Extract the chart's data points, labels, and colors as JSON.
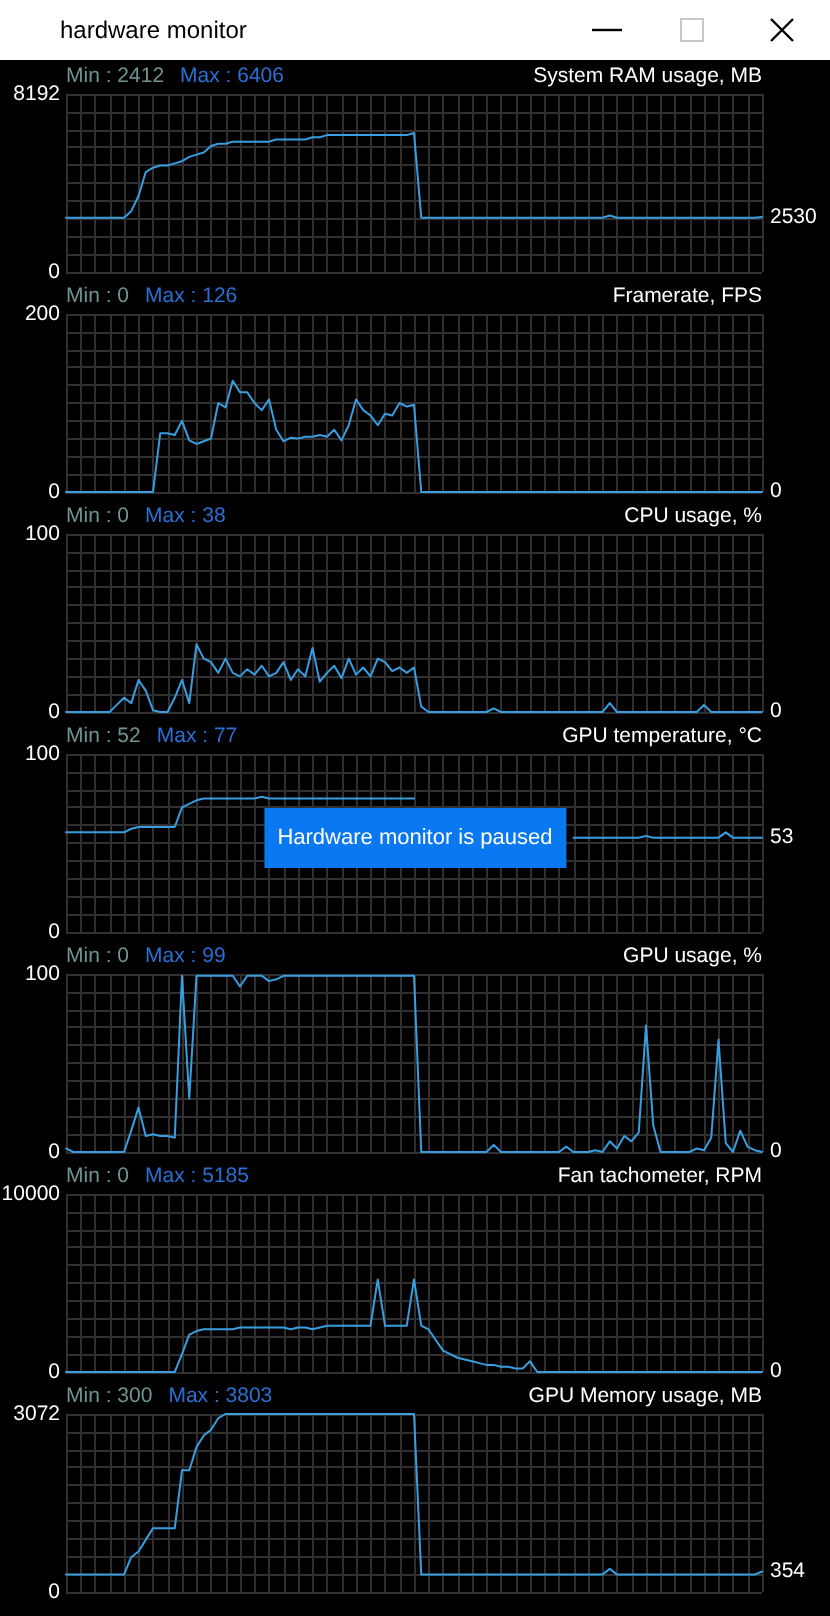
{
  "chart_data": [
    {
      "type": "other",
      "title": "hardware monitor"
    },
    {
      "type": "line",
      "title": "System RAM usage, MB",
      "annotations": [
        "Min : 2412",
        "Max : 6406"
      ],
      "categories": [
        null,
        null,
        null,
        null,
        null,
        null,
        null,
        null,
        null,
        null,
        null,
        null,
        null,
        null,
        null,
        null,
        null,
        null,
        null,
        null,
        null,
        null,
        null,
        null,
        null,
        null,
        null,
        null,
        null,
        null,
        null,
        null,
        null,
        null,
        null,
        null,
        null,
        null,
        null,
        null,
        null,
        null,
        null,
        null,
        null,
        null,
        null,
        null,
        null,
        null,
        null,
        null,
        null,
        null,
        null,
        null,
        null,
        null,
        null,
        null,
        null,
        null,
        null,
        null,
        null,
        null,
        null,
        null,
        null,
        null,
        null,
        null,
        null,
        null,
        null,
        null,
        null,
        null,
        null,
        null,
        null,
        null,
        null,
        null,
        null,
        null,
        null,
        null,
        null,
        null,
        null,
        null,
        null,
        null,
        null,
        null,
        null
      ],
      "values": [
        2500,
        2500,
        2500,
        2500,
        2500,
        2500,
        2500,
        2500,
        2500,
        2800,
        3500,
        4600,
        4800,
        4900,
        4900,
        5000,
        5100,
        5300,
        5400,
        5500,
        5800,
        5900,
        5900,
        6000,
        6000,
        6000,
        6000,
        6000,
        6000,
        6100,
        6100,
        6100,
        6100,
        6100,
        6200,
        6200,
        6300,
        6300,
        6300,
        6300,
        6300,
        6300,
        6300,
        6300,
        6300,
        6300,
        6300,
        6300,
        6400,
        2500,
        2500,
        2500,
        2500,
        2500,
        2500,
        2500,
        2500,
        2500,
        2500,
        2500,
        2500,
        2500,
        2500,
        2500,
        2500,
        2500,
        2500,
        2500,
        2500,
        2500,
        2500,
        2500,
        2500,
        2500,
        2500,
        2600,
        2500,
        2500,
        2500,
        2500,
        2500,
        2500,
        2500,
        2500,
        2500,
        2500,
        2500,
        2500,
        2500,
        2500,
        2500,
        2500,
        2500,
        2500,
        2500,
        2500,
        2530
      ],
      "value_labels": [
        null,
        null,
        null,
        null,
        null,
        null,
        null,
        null,
        null,
        null,
        null,
        null,
        null,
        null,
        null,
        null,
        null,
        null,
        null,
        null,
        null,
        null,
        null,
        null,
        null,
        null,
        null,
        null,
        null,
        null,
        null,
        null,
        null,
        null,
        null,
        null,
        null,
        null,
        null,
        null,
        null,
        null,
        null,
        null,
        null,
        null,
        null,
        null,
        null,
        null,
        null,
        null,
        null,
        null,
        null,
        null,
        null,
        null,
        null,
        null,
        null,
        null,
        null,
        null,
        null,
        null,
        null,
        null,
        null,
        null,
        null,
        null,
        null,
        null,
        null,
        null,
        null,
        null,
        null,
        null,
        null,
        null,
        null,
        null,
        null,
        null,
        null,
        null,
        null,
        null,
        null,
        null,
        null,
        null,
        null,
        null,
        "2530"
      ],
      "color": "#389ee0",
      "ylim": [
        0,
        8192
      ],
      "yticks": [
        0,
        {
          "value": 819.2,
          "label": null
        },
        {
          "value": 1638.4,
          "label": null
        },
        {
          "value": 2457.6,
          "label": null
        },
        {
          "value": 3276.8,
          "label": null
        },
        {
          "value": 4096,
          "label": null
        },
        {
          "value": 4915.2,
          "label": null
        },
        {
          "value": 5734.4,
          "label": null
        },
        {
          "value": 6553.6,
          "label": null
        },
        {
          "value": 7372.8,
          "label": null
        },
        8192
      ],
      "grid": true,
      "tick_labels": "y"
    },
    {
      "type": "line",
      "title": "Framerate, FPS",
      "annotations": [
        "Min : 0",
        "Max : 126"
      ],
      "categories": [
        null,
        null,
        null,
        null,
        null,
        null,
        null,
        null,
        null,
        null,
        null,
        null,
        null,
        null,
        null,
        null,
        null,
        null,
        null,
        null,
        null,
        null,
        null,
        null,
        null,
        null,
        null,
        null,
        null,
        null,
        null,
        null,
        null,
        null,
        null,
        null,
        null,
        null,
        null,
        null,
        null,
        null,
        null,
        null,
        null,
        null,
        null,
        null,
        null,
        null,
        null,
        null,
        null,
        null,
        null,
        null,
        null,
        null,
        null,
        null,
        null,
        null,
        null,
        null,
        null,
        null,
        null,
        null,
        null,
        null,
        null,
        null,
        null,
        null,
        null,
        null,
        null,
        null,
        null,
        null,
        null,
        null,
        null,
        null,
        null,
        null,
        null,
        null,
        null,
        null,
        null,
        null,
        null,
        null,
        null,
        null,
        null
      ],
      "values": [
        0,
        0,
        0,
        0,
        0,
        0,
        0,
        0,
        0,
        0,
        0,
        0,
        0,
        66,
        66,
        64,
        80,
        58,
        54,
        57,
        60,
        100,
        95,
        125,
        112,
        112,
        100,
        92,
        104,
        70,
        57,
        61,
        60,
        62,
        62,
        64,
        62,
        70,
        58,
        75,
        104,
        92,
        86,
        75,
        88,
        86,
        100,
        96,
        98,
        0,
        0,
        0,
        0,
        0,
        0,
        0,
        0,
        0,
        0,
        0,
        0,
        0,
        0,
        0,
        0,
        0,
        0,
        0,
        0,
        0,
        0,
        0,
        0,
        0,
        0,
        0,
        0,
        0,
        0,
        0,
        0,
        0,
        0,
        0,
        0,
        0,
        0,
        0,
        0,
        0,
        0,
        0,
        0,
        0,
        0,
        0,
        0
      ],
      "value_labels": [
        null,
        null,
        null,
        null,
        null,
        null,
        null,
        null,
        null,
        null,
        null,
        null,
        null,
        null,
        null,
        null,
        null,
        null,
        null,
        null,
        null,
        null,
        null,
        null,
        null,
        null,
        null,
        null,
        null,
        null,
        null,
        null,
        null,
        null,
        null,
        null,
        null,
        null,
        null,
        null,
        null,
        null,
        null,
        null,
        null,
        null,
        null,
        null,
        null,
        null,
        null,
        null,
        null,
        null,
        null,
        null,
        null,
        null,
        null,
        null,
        null,
        null,
        null,
        null,
        null,
        null,
        null,
        null,
        null,
        null,
        null,
        null,
        null,
        null,
        null,
        null,
        null,
        null,
        null,
        null,
        null,
        null,
        null,
        null,
        null,
        null,
        null,
        null,
        null,
        null,
        null,
        null,
        null,
        null,
        null,
        null,
        "0"
      ],
      "color": "#389ee0",
      "ylim": [
        0,
        200
      ],
      "yticks": [
        0,
        {
          "value": 20,
          "label": null
        },
        {
          "value": 40,
          "label": null
        },
        {
          "value": 60,
          "label": null
        },
        {
          "value": 80,
          "label": null
        },
        {
          "value": 100,
          "label": null
        },
        {
          "value": 120,
          "label": null
        },
        {
          "value": 140,
          "label": null
        },
        {
          "value": 160,
          "label": null
        },
        {
          "value": 180,
          "label": null
        },
        200
      ],
      "grid": true,
      "tick_labels": "y"
    },
    {
      "type": "line",
      "title": "CPU usage, %",
      "annotations": [
        "Min : 0",
        "Max : 38"
      ],
      "categories": [
        null,
        null,
        null,
        null,
        null,
        null,
        null,
        null,
        null,
        null,
        null,
        null,
        null,
        null,
        null,
        null,
        null,
        null,
        null,
        null,
        null,
        null,
        null,
        null,
        null,
        null,
        null,
        null,
        null,
        null,
        null,
        null,
        null,
        null,
        null,
        null,
        null,
        null,
        null,
        null,
        null,
        null,
        null,
        null,
        null,
        null,
        null,
        null,
        null,
        null,
        null,
        null,
        null,
        null,
        null,
        null,
        null,
        null,
        null,
        null,
        null,
        null,
        null,
        null,
        null,
        null,
        null,
        null,
        null,
        null,
        null,
        null,
        null,
        null,
        null,
        null,
        null,
        null,
        null,
        null,
        null,
        null,
        null,
        null,
        null,
        null,
        null,
        null,
        null,
        null,
        null,
        null,
        null,
        null,
        null,
        null,
        null
      ],
      "values": [
        0,
        0,
        0,
        0,
        0,
        0,
        0,
        4,
        8,
        5,
        18,
        12,
        1,
        0,
        0,
        8,
        18,
        5,
        38,
        30,
        28,
        22,
        30,
        22,
        20,
        24,
        21,
        26,
        20,
        22,
        28,
        18,
        24,
        20,
        36,
        17,
        22,
        26,
        19,
        30,
        21,
        25,
        20,
        30,
        28,
        23,
        25,
        22,
        25,
        3,
        0,
        0,
        0,
        0,
        0,
        0,
        0,
        0,
        0,
        2,
        0,
        0,
        0,
        0,
        0,
        0,
        0,
        0,
        0,
        0,
        0,
        0,
        0,
        0,
        0,
        5,
        0,
        0,
        0,
        0,
        0,
        0,
        0,
        0,
        0,
        0,
        0,
        0,
        4,
        0,
        0,
        0,
        0,
        0,
        0,
        0,
        0
      ],
      "value_labels": [
        null,
        null,
        null,
        null,
        null,
        null,
        null,
        null,
        null,
        null,
        null,
        null,
        null,
        null,
        null,
        null,
        null,
        null,
        null,
        null,
        null,
        null,
        null,
        null,
        null,
        null,
        null,
        null,
        null,
        null,
        null,
        null,
        null,
        null,
        null,
        null,
        null,
        null,
        null,
        null,
        null,
        null,
        null,
        null,
        null,
        null,
        null,
        null,
        null,
        null,
        null,
        null,
        null,
        null,
        null,
        null,
        null,
        null,
        null,
        null,
        null,
        null,
        null,
        null,
        null,
        null,
        null,
        null,
        null,
        null,
        null,
        null,
        null,
        null,
        null,
        null,
        null,
        null,
        null,
        null,
        null,
        null,
        null,
        null,
        null,
        null,
        null,
        null,
        null,
        null,
        null,
        null,
        null,
        null,
        null,
        null,
        "0"
      ],
      "color": "#389ee0",
      "ylim": [
        0,
        100
      ],
      "yticks": [
        0,
        {
          "value": 10,
          "label": null
        },
        {
          "value": 20,
          "label": null
        },
        {
          "value": 30,
          "label": null
        },
        {
          "value": 40,
          "label": null
        },
        {
          "value": 50,
          "label": null
        },
        {
          "value": 60,
          "label": null
        },
        {
          "value": 70,
          "label": null
        },
        {
          "value": 80,
          "label": null
        },
        {
          "value": 90,
          "label": null
        },
        100
      ],
      "grid": true,
      "tick_labels": "y"
    },
    {
      "type": "line",
      "title": "GPU temperature, °C",
      "annotations": [
        "Min : 52",
        "Max : 77",
        "Hardware monitor is paused"
      ],
      "categories": [
        null,
        null,
        null,
        null,
        null,
        null,
        null,
        null,
        null,
        null,
        null,
        null,
        null,
        null,
        null,
        null,
        null,
        null,
        null,
        null,
        null,
        null,
        null,
        null,
        null,
        null,
        null,
        null,
        null,
        null,
        null,
        null,
        null,
        null,
        null,
        null,
        null,
        null,
        null,
        null,
        null,
        null,
        null,
        null,
        null,
        null,
        null,
        null,
        null,
        null,
        null,
        null,
        null,
        null,
        null,
        null,
        null,
        null,
        null,
        null,
        null,
        null,
        null,
        null,
        null,
        null,
        null,
        null,
        null,
        null,
        null,
        null,
        null,
        null,
        null,
        null,
        null,
        null,
        null,
        null,
        null,
        null,
        null,
        null,
        null,
        null,
        null,
        null,
        null,
        null,
        null,
        null,
        null,
        null,
        null,
        null,
        null
      ],
      "values": [
        56,
        56,
        56,
        56,
        56,
        56,
        56,
        56,
        56,
        58,
        59,
        59,
        59,
        59,
        59,
        59,
        70,
        72,
        74,
        75,
        75,
        75,
        75,
        75,
        75,
        75,
        75,
        76,
        75,
        75,
        75,
        75,
        75,
        75,
        75,
        75,
        75,
        75,
        75,
        75,
        75,
        75,
        75,
        75,
        75,
        75,
        75,
        75,
        75,
        null,
        null,
        null,
        null,
        null,
        null,
        null,
        null,
        null,
        null,
        null,
        null,
        null,
        null,
        null,
        null,
        null,
        null,
        null,
        null,
        null,
        53,
        53,
        53,
        53,
        53,
        53,
        53,
        53,
        53,
        53,
        54,
        53,
        53,
        53,
        53,
        53,
        53,
        53,
        53,
        53,
        53,
        56,
        53,
        53,
        53,
        53,
        53
      ],
      "value_labels": [
        null,
        null,
        null,
        null,
        null,
        null,
        null,
        null,
        null,
        null,
        null,
        null,
        null,
        null,
        null,
        null,
        null,
        null,
        null,
        null,
        null,
        null,
        null,
        null,
        null,
        null,
        null,
        null,
        null,
        null,
        null,
        null,
        null,
        null,
        null,
        null,
        null,
        null,
        null,
        null,
        null,
        null,
        null,
        null,
        null,
        null,
        null,
        null,
        null,
        null,
        null,
        null,
        null,
        null,
        null,
        null,
        null,
        null,
        null,
        null,
        null,
        null,
        null,
        null,
        null,
        null,
        null,
        null,
        null,
        null,
        null,
        null,
        null,
        null,
        null,
        null,
        null,
        null,
        null,
        null,
        null,
        null,
        null,
        null,
        null,
        null,
        null,
        null,
        null,
        null,
        null,
        null,
        null,
        null,
        null,
        null,
        "53"
      ],
      "color": "#389ee0",
      "ylim": [
        0,
        100
      ],
      "yticks": [
        0,
        {
          "value": 10,
          "label": null
        },
        {
          "value": 20,
          "label": null
        },
        {
          "value": 30,
          "label": null
        },
        {
          "value": 40,
          "label": null
        },
        {
          "value": 50,
          "label": null
        },
        {
          "value": 60,
          "label": null
        },
        {
          "value": 70,
          "label": null
        },
        {
          "value": 80,
          "label": null
        },
        {
          "value": 90,
          "label": null
        },
        100
      ],
      "grid": true,
      "tick_labels": "y"
    },
    {
      "type": "line",
      "title": "GPU usage, %",
      "annotations": [
        "Min : 0",
        "Max : 99"
      ],
      "categories": [
        null,
        null,
        null,
        null,
        null,
        null,
        null,
        null,
        null,
        null,
        null,
        null,
        null,
        null,
        null,
        null,
        null,
        null,
        null,
        null,
        null,
        null,
        null,
        null,
        null,
        null,
        null,
        null,
        null,
        null,
        null,
        null,
        null,
        null,
        null,
        null,
        null,
        null,
        null,
        null,
        null,
        null,
        null,
        null,
        null,
        null,
        null,
        null,
        null,
        null,
        null,
        null,
        null,
        null,
        null,
        null,
        null,
        null,
        null,
        null,
        null,
        null,
        null,
        null,
        null,
        null,
        null,
        null,
        null,
        null,
        null,
        null,
        null,
        null,
        null,
        null,
        null,
        null,
        null,
        null,
        null,
        null,
        null,
        null,
        null,
        null,
        null,
        null,
        null,
        null,
        null,
        null,
        null,
        null,
        null,
        null,
        null
      ],
      "values": [
        2,
        0,
        0,
        0,
        0,
        0,
        0,
        0,
        0,
        12,
        25,
        9,
        10,
        9,
        9,
        8,
        99,
        30,
        99,
        99,
        99,
        99,
        99,
        99,
        93,
        99,
        99,
        99,
        96,
        97,
        99,
        99,
        99,
        99,
        99,
        99,
        99,
        99,
        99,
        99,
        99,
        99,
        99,
        99,
        99,
        99,
        99,
        99,
        99,
        0,
        0,
        0,
        0,
        0,
        0,
        0,
        0,
        0,
        0,
        4,
        0,
        0,
        0,
        0,
        0,
        0,
        0,
        0,
        0,
        3,
        0,
        0,
        0,
        1,
        0,
        6,
        2,
        9,
        6,
        11,
        71,
        15,
        0,
        0,
        0,
        0,
        0,
        2,
        1,
        8,
        63,
        5,
        0,
        12,
        3,
        1,
        0
      ],
      "value_labels": [
        null,
        null,
        null,
        null,
        null,
        null,
        null,
        null,
        null,
        null,
        null,
        null,
        null,
        null,
        null,
        null,
        null,
        null,
        null,
        null,
        null,
        null,
        null,
        null,
        null,
        null,
        null,
        null,
        null,
        null,
        null,
        null,
        null,
        null,
        null,
        null,
        null,
        null,
        null,
        null,
        null,
        null,
        null,
        null,
        null,
        null,
        null,
        null,
        null,
        null,
        null,
        null,
        null,
        null,
        null,
        null,
        null,
        null,
        null,
        null,
        null,
        null,
        null,
        null,
        null,
        null,
        null,
        null,
        null,
        null,
        null,
        null,
        null,
        null,
        null,
        null,
        null,
        null,
        null,
        null,
        null,
        null,
        null,
        null,
        null,
        null,
        null,
        null,
        null,
        null,
        null,
        null,
        null,
        null,
        null,
        null,
        "0"
      ],
      "color": "#389ee0",
      "ylim": [
        0,
        100
      ],
      "yticks": [
        0,
        {
          "value": 10,
          "label": null
        },
        {
          "value": 20,
          "label": null
        },
        {
          "value": 30,
          "label": null
        },
        {
          "value": 40,
          "label": null
        },
        {
          "value": 50,
          "label": null
        },
        {
          "value": 60,
          "label": null
        },
        {
          "value": 70,
          "label": null
        },
        {
          "value": 80,
          "label": null
        },
        {
          "value": 90,
          "label": null
        },
        100
      ],
      "grid": true,
      "tick_labels": "y"
    },
    {
      "type": "line",
      "title": "Fan tachometer, RPM",
      "annotations": [
        "Min : 0",
        "Max : 5185"
      ],
      "categories": [
        null,
        null,
        null,
        null,
        null,
        null,
        null,
        null,
        null,
        null,
        null,
        null,
        null,
        null,
        null,
        null,
        null,
        null,
        null,
        null,
        null,
        null,
        null,
        null,
        null,
        null,
        null,
        null,
        null,
        null,
        null,
        null,
        null,
        null,
        null,
        null,
        null,
        null,
        null,
        null,
        null,
        null,
        null,
        null,
        null,
        null,
        null,
        null,
        null,
        null,
        null,
        null,
        null,
        null,
        null,
        null,
        null,
        null,
        null,
        null,
        null,
        null,
        null,
        null,
        null,
        null,
        null,
        null,
        null,
        null,
        null,
        null,
        null,
        null,
        null,
        null,
        null,
        null,
        null,
        null,
        null,
        null,
        null,
        null,
        null,
        null,
        null,
        null,
        null,
        null,
        null,
        null,
        null,
        null,
        null,
        null,
        null
      ],
      "values": [
        0,
        0,
        0,
        0,
        0,
        0,
        0,
        0,
        0,
        0,
        0,
        0,
        0,
        0,
        0,
        0,
        1000,
        2100,
        2300,
        2400,
        2400,
        2400,
        2400,
        2400,
        2500,
        2500,
        2500,
        2500,
        2500,
        2500,
        2500,
        2400,
        2500,
        2500,
        2400,
        2500,
        2600,
        2600,
        2600,
        2600,
        2600,
        2600,
        2600,
        5200,
        2600,
        2600,
        2600,
        2600,
        5200,
        2600,
        2400,
        1800,
        1200,
        1000,
        800,
        700,
        600,
        500,
        400,
        400,
        300,
        300,
        200,
        200,
        600,
        0,
        0,
        0,
        0,
        0,
        0,
        0,
        0,
        0,
        0,
        0,
        0,
        0,
        0,
        0,
        0,
        0,
        0,
        0,
        0,
        0,
        0,
        0,
        0,
        0,
        0,
        0,
        0,
        0,
        0,
        0,
        0
      ],
      "value_labels": [
        null,
        null,
        null,
        null,
        null,
        null,
        null,
        null,
        null,
        null,
        null,
        null,
        null,
        null,
        null,
        null,
        null,
        null,
        null,
        null,
        null,
        null,
        null,
        null,
        null,
        null,
        null,
        null,
        null,
        null,
        null,
        null,
        null,
        null,
        null,
        null,
        null,
        null,
        null,
        null,
        null,
        null,
        null,
        null,
        null,
        null,
        null,
        null,
        null,
        null,
        null,
        null,
        null,
        null,
        null,
        null,
        null,
        null,
        null,
        null,
        null,
        null,
        null,
        null,
        null,
        null,
        null,
        null,
        null,
        null,
        null,
        null,
        null,
        null,
        null,
        null,
        null,
        null,
        null,
        null,
        null,
        null,
        null,
        null,
        null,
        null,
        null,
        null,
        null,
        null,
        null,
        null,
        null,
        null,
        null,
        null,
        "0"
      ],
      "color": "#389ee0",
      "ylim": [
        0,
        10000
      ],
      "yticks": [
        0,
        {
          "value": 1000,
          "label": null
        },
        {
          "value": 2000,
          "label": null
        },
        {
          "value": 3000,
          "label": null
        },
        {
          "value": 4000,
          "label": null
        },
        {
          "value": 5000,
          "label": null
        },
        {
          "value": 6000,
          "label": null
        },
        {
          "value": 7000,
          "label": null
        },
        {
          "value": 8000,
          "label": null
        },
        {
          "value": 9000,
          "label": null
        },
        10000
      ],
      "grid": true,
      "tick_labels": "y"
    },
    {
      "type": "line",
      "title": "GPU Memory usage, MB",
      "annotations": [
        "Min : 300",
        "Max : 3803"
      ],
      "categories": [
        null,
        null,
        null,
        null,
        null,
        null,
        null,
        null,
        null,
        null,
        null,
        null,
        null,
        null,
        null,
        null,
        null,
        null,
        null,
        null,
        null,
        null,
        null,
        null,
        null,
        null,
        null,
        null,
        null,
        null,
        null,
        null,
        null,
        null,
        null,
        null,
        null,
        null,
        null,
        null,
        null,
        null,
        null,
        null,
        null,
        null,
        null,
        null,
        null,
        null,
        null,
        null,
        null,
        null,
        null,
        null,
        null,
        null,
        null,
        null,
        null,
        null,
        null,
        null,
        null,
        null,
        null,
        null,
        null,
        null,
        null,
        null,
        null,
        null,
        null,
        null,
        null,
        null,
        null,
        null,
        null,
        null,
        null,
        null,
        null,
        null,
        null,
        null,
        null,
        null,
        null,
        null,
        null,
        null,
        null,
        null,
        null
      ],
      "values": [
        300,
        300,
        300,
        300,
        300,
        300,
        300,
        300,
        300,
        600,
        700,
        900,
        1100,
        1100,
        1100,
        1100,
        2100,
        2100,
        2500,
        2700,
        2800,
        3000,
        3072,
        3072,
        3072,
        3072,
        3072,
        3072,
        3072,
        3072,
        3072,
        3072,
        3072,
        3072,
        3072,
        3072,
        3072,
        3072,
        3072,
        3072,
        3072,
        3072,
        3072,
        3072,
        3072,
        3072,
        3072,
        3072,
        3072,
        300,
        300,
        300,
        300,
        300,
        300,
        300,
        300,
        300,
        300,
        300,
        300,
        300,
        300,
        300,
        300,
        300,
        300,
        300,
        300,
        300,
        300,
        300,
        300,
        300,
        300,
        400,
        300,
        300,
        300,
        300,
        300,
        300,
        300,
        300,
        300,
        300,
        300,
        300,
        300,
        300,
        300,
        300,
        300,
        300,
        300,
        300,
        354
      ],
      "value_labels": [
        null,
        null,
        null,
        null,
        null,
        null,
        null,
        null,
        null,
        null,
        null,
        null,
        null,
        null,
        null,
        null,
        null,
        null,
        null,
        null,
        null,
        null,
        null,
        null,
        null,
        null,
        null,
        null,
        null,
        null,
        null,
        null,
        null,
        null,
        null,
        null,
        null,
        null,
        null,
        null,
        null,
        null,
        null,
        null,
        null,
        null,
        null,
        null,
        null,
        null,
        null,
        null,
        null,
        null,
        null,
        null,
        null,
        null,
        null,
        null,
        null,
        null,
        null,
        null,
        null,
        null,
        null,
        null,
        null,
        null,
        null,
        null,
        null,
        null,
        null,
        null,
        null,
        null,
        null,
        null,
        null,
        null,
        null,
        null,
        null,
        null,
        null,
        null,
        null,
        null,
        null,
        null,
        null,
        null,
        null,
        null,
        "354"
      ],
      "color": "#389ee0",
      "ylim": [
        0,
        3072
      ],
      "yticks": [
        0,
        {
          "value": 307.2,
          "label": null
        },
        {
          "value": 614.4,
          "label": null
        },
        {
          "value": 921.6,
          "label": null
        },
        {
          "value": 1228.8,
          "label": null
        },
        {
          "value": 1536,
          "label": null
        },
        {
          "value": 1843.2,
          "label": null
        },
        {
          "value": 2150.4,
          "label": null
        },
        {
          "value": 2457.6,
          "label": null
        },
        {
          "value": 2764.8,
          "label": null
        },
        3072
      ],
      "grid": true,
      "tick_labels": "y"
    }
  ]
}
